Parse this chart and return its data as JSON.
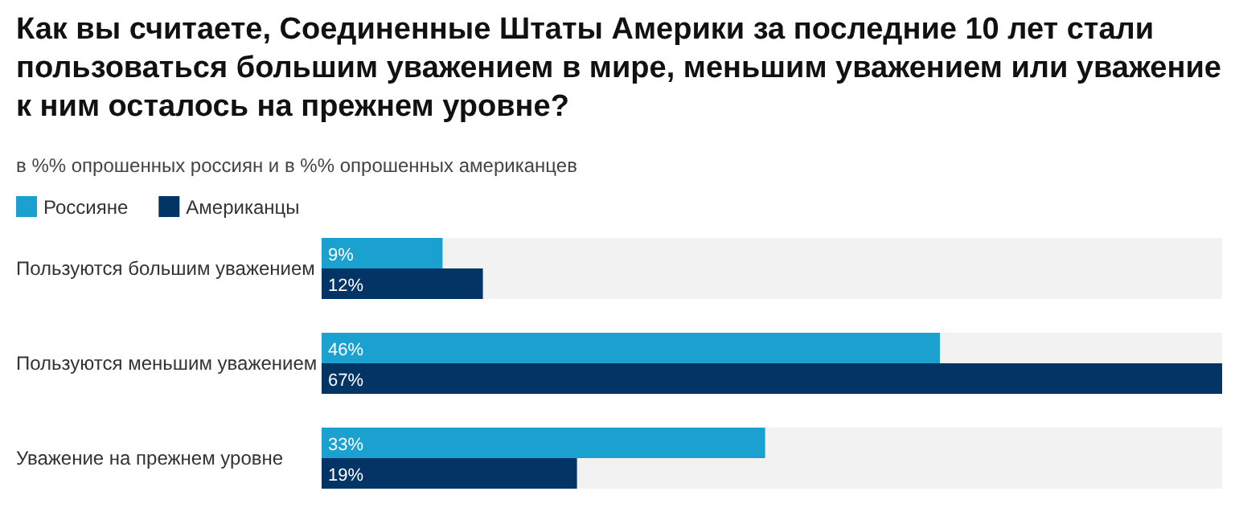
{
  "chart_data": {
    "type": "bar",
    "orientation": "horizontal",
    "title": "Как вы считаете, Соединенные Штаты Америки за последние 10 лет стали пользоваться большим уважением в мире, меньшим уважением или уважение к ним осталось на прежнем уровне?",
    "subtitle": "в %% опрошенных россиян и в %% опрошенных американцев",
    "categories": [
      "Пользуются большим уважением",
      "Пользуются меньшим уважением",
      "Уважение на прежнем уровне"
    ],
    "legend": "top left",
    "series": [
      {
        "name": "Россияне",
        "color": "#1ba1cf",
        "values": [
          9,
          46,
          33
        ],
        "value_labels": [
          "9%",
          "46%",
          "33%"
        ]
      },
      {
        "name": "Американцы",
        "color": "#023466",
        "values": [
          12,
          67,
          19
        ],
        "value_labels": [
          "12%",
          "67%",
          "19%"
        ]
      }
    ]
  }
}
